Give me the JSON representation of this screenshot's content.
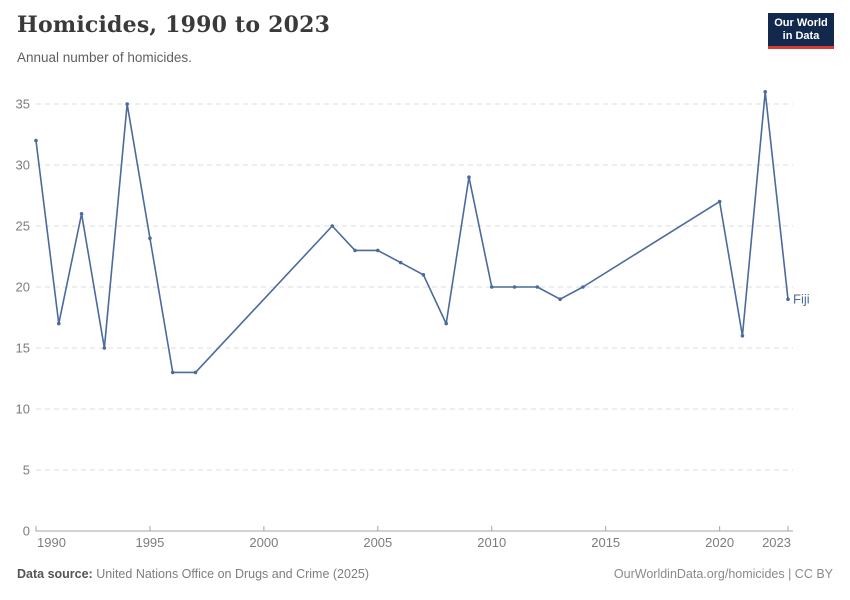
{
  "header": {
    "title": "Homicides, 1990 to 2023",
    "subtitle": "Annual number of homicides.",
    "logo": {
      "line1": "Our World",
      "line2": "in Data"
    }
  },
  "footer": {
    "source_label": "Data source:",
    "source_text": " United Nations Office on Drugs and Crime (2025)",
    "credit": "OurWorldinData.org/homicides | CC BY"
  },
  "chart_data": {
    "type": "line",
    "title": "Homicides, 1990 to 2023",
    "subtitle": "Annual number of homicides.",
    "xlabel": "",
    "ylabel": "",
    "xlim": [
      1990,
      2023
    ],
    "ylim": [
      0,
      35
    ],
    "x_ticks": [
      1990,
      1995,
      2000,
      2005,
      2010,
      2015,
      2020,
      2023
    ],
    "y_ticks": [
      0,
      5,
      10,
      15,
      20,
      25,
      30,
      35
    ],
    "grid": "horizontal-dashed",
    "legend_position": "line-end-label",
    "colors": {
      "line": "#4c6a9c",
      "grid": "#dcdcdc",
      "axis": "#a5a5a5",
      "tick_text": "#7d7d7d"
    },
    "series": [
      {
        "name": "Fiji",
        "color": "#4c6a9c",
        "points": [
          [
            1990,
            32
          ],
          [
            1991,
            17
          ],
          [
            1992,
            26
          ],
          [
            1993,
            15
          ],
          [
            1994,
            35
          ],
          [
            1995,
            24
          ],
          [
            1996,
            13
          ],
          [
            1997,
            13
          ],
          [
            2003,
            25
          ],
          [
            2004,
            23
          ],
          [
            2005,
            23
          ],
          [
            2006,
            22
          ],
          [
            2007,
            21
          ],
          [
            2008,
            17
          ],
          [
            2009,
            29
          ],
          [
            2010,
            20
          ],
          [
            2011,
            20
          ],
          [
            2012,
            20
          ],
          [
            2013,
            19
          ],
          [
            2014,
            20
          ],
          [
            2020,
            27
          ],
          [
            2021,
            16
          ],
          [
            2022,
            36
          ],
          [
            2023,
            19
          ]
        ]
      }
    ]
  }
}
